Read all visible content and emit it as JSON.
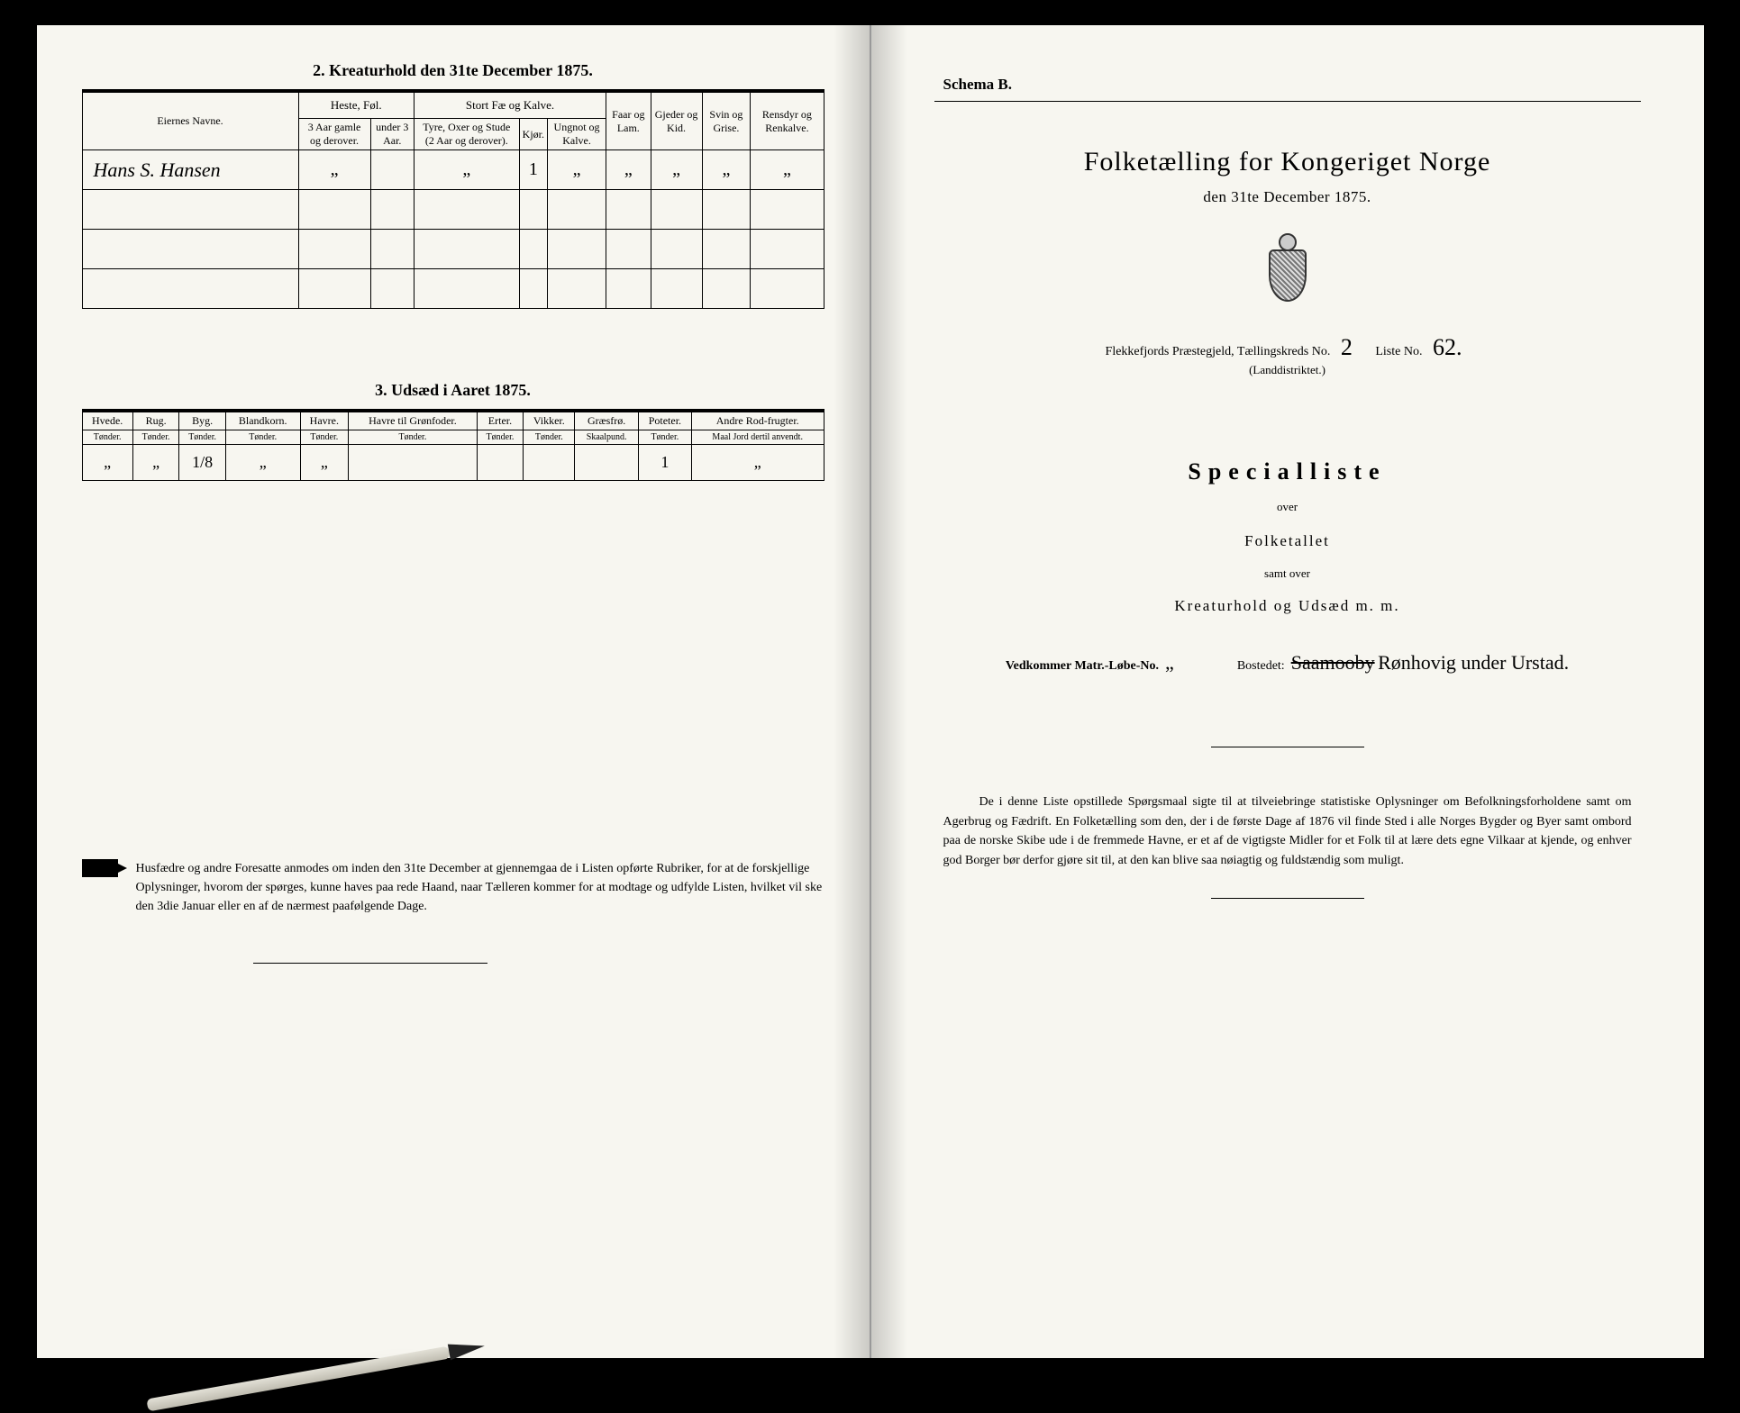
{
  "left": {
    "sec2_title": "2.  Kreaturhold den 31te December 1875.",
    "t2": {
      "owner_header": "Eiernes Navne.",
      "groups": {
        "heste": "Heste, Føl.",
        "stort": "Stort Fæ og Kalve."
      },
      "cols": {
        "h1": "3 Aar gamle og derover.",
        "h2": "under 3 Aar.",
        "s1": "Tyre, Oxer og Stude (2 Aar og derover).",
        "s2": "Kjør.",
        "s3": "Ungnot og Kalve.",
        "faar": "Faar og Lam.",
        "gjed": "Gjeder og Kid.",
        "svin": "Svin og Grise.",
        "rens": "Rensdyr og Renkalve."
      },
      "rows": [
        {
          "owner": "Hans S. Hansen",
          "h1": "„",
          "h2": "",
          "s1": "„",
          "s2": "1",
          "s3": "„",
          "faar": "„",
          "gjed": "„",
          "svin": "„",
          "rens": "„"
        },
        {
          "owner": "",
          "h1": "",
          "h2": "",
          "s1": "",
          "s2": "",
          "s3": "",
          "faar": "",
          "gjed": "",
          "svin": "",
          "rens": ""
        },
        {
          "owner": "",
          "h1": "",
          "h2": "",
          "s1": "",
          "s2": "",
          "s3": "",
          "faar": "",
          "gjed": "",
          "svin": "",
          "rens": ""
        },
        {
          "owner": "",
          "h1": "",
          "h2": "",
          "s1": "",
          "s2": "",
          "s3": "",
          "faar": "",
          "gjed": "",
          "svin": "",
          "rens": ""
        }
      ]
    },
    "sec3_title": "3.  Udsæd i Aaret 1875.",
    "t3": {
      "cols": [
        {
          "name": "Hvede.",
          "unit": "Tønder."
        },
        {
          "name": "Rug.",
          "unit": "Tønder."
        },
        {
          "name": "Byg.",
          "unit": "Tønder."
        },
        {
          "name": "Blandkorn.",
          "unit": "Tønder."
        },
        {
          "name": "Havre.",
          "unit": "Tønder."
        },
        {
          "name": "Havre til Grønfoder.",
          "unit": "Tønder."
        },
        {
          "name": "Erter.",
          "unit": "Tønder."
        },
        {
          "name": "Vikker.",
          "unit": "Tønder."
        },
        {
          "name": "Græsfrø.",
          "unit": "Skaalpund."
        },
        {
          "name": "Poteter.",
          "unit": "Tønder."
        },
        {
          "name": "Andre Rod-frugter.",
          "unit": "Maal Jord dertil anvendt."
        }
      ],
      "row": [
        "„",
        "„",
        "1/8",
        "„",
        "„",
        "",
        "",
        "",
        "",
        "1",
        "„"
      ]
    },
    "footnote": "Husfædre og andre Foresatte anmodes om inden den 31te December at gjennemgaa de i Listen opførte Rubriker, for at de forskjellige Oplysninger, hvorom der spørges, kunne haves paa rede Haand, naar Tælleren kommer for at modtage og udfylde Listen, hvilket vil ske den 3die Januar eller en af de nærmest paafølgende Dage."
  },
  "right": {
    "schema": "Schema B.",
    "title": "Folketælling for Kongeriget Norge",
    "date": "den 31te December 1875.",
    "parish_prefix": "Flekkefjords Præstegjeld,  Tællingskreds No.",
    "kreds_no": "2",
    "liste_label": "Liste No.",
    "liste_no": "62.",
    "landd": "(Landdistriktet.)",
    "special": "Specialliste",
    "over": "over",
    "folketallet": "Folketallet",
    "samt": "samt over",
    "kreatur": "Kreaturhold og Udsæd m. m.",
    "vedk": "Vedkommer Matr.-Løbe-No.",
    "vedk_val": "„",
    "bostedet": "Bostedet:",
    "bostedet_strike": "Saamooby",
    "bostedet_hw": "Rønhovig under Urstad.",
    "bottom": "De i denne Liste opstillede Spørgsmaal sigte til at tilveiebringe statistiske Oplysninger om Befolkningsforholdene samt om Agerbrug og Fædrift.  En Folketælling som den, der i de første Dage af 1876 vil finde Sted i alle Norges Bygder og Byer samt ombord paa de norske Skibe ude i de fremmede Havne, er et af de vigtigste Midler for et Folk til at lære dets egne Vilkaar at kjende, og enhver god Borger bør derfor gjøre sit til, at den kan blive saa nøiagtig og fuldstændig som muligt."
  }
}
